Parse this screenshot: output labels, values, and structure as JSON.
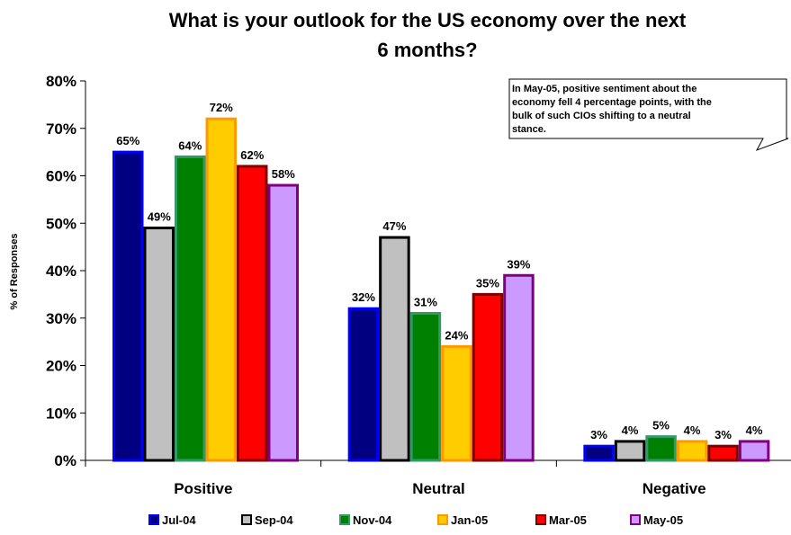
{
  "chart_data": {
    "type": "bar",
    "title_line1": "What is your outlook for the US economy over the next",
    "title_line2": "6 months?",
    "ylabel": "% of Responses",
    "ylim": [
      0,
      80
    ],
    "yticks": [
      "0%",
      "10%",
      "20%",
      "30%",
      "40%",
      "50%",
      "60%",
      "70%",
      "80%"
    ],
    "categories": [
      "Positive",
      "Neutral",
      "Negative"
    ],
    "series": [
      {
        "name": "Jul-04",
        "color": "#000080",
        "edge": "#0000FF",
        "values": [
          65,
          32,
          3
        ]
      },
      {
        "name": "Sep-04",
        "color": "#C0C0C0",
        "edge": "#000000",
        "values": [
          49,
          47,
          4
        ]
      },
      {
        "name": "Nov-04",
        "color": "#008000",
        "edge": "#339966",
        "values": [
          64,
          31,
          5
        ]
      },
      {
        "name": "Jan-05",
        "color": "#FFCC00",
        "edge": "#FF9900",
        "values": [
          72,
          24,
          4
        ]
      },
      {
        "name": "Mar-05",
        "color": "#FF0000",
        "edge": "#800000",
        "values": [
          62,
          35,
          3
        ]
      },
      {
        "name": "May-05",
        "color": "#CC99FF",
        "edge": "#800080",
        "values": [
          58,
          39,
          4
        ]
      }
    ],
    "data_labels": [
      [
        "65%",
        "32%",
        "3%"
      ],
      [
        "49%",
        "47%",
        "4%"
      ],
      [
        "64%",
        "31%",
        "5%"
      ],
      [
        "72%",
        "24%",
        "4%"
      ],
      [
        "62%",
        "35%",
        "3%"
      ],
      [
        "58%",
        "39%",
        "4%"
      ]
    ],
    "annotation": {
      "lines": [
        "In May-05, positive sentiment about the",
        "economy fell 4 percentage points, with the",
        "bulk of such CIOs shifting to a neutral",
        "stance."
      ]
    },
    "legend_position": "bottom",
    "grid": false
  }
}
